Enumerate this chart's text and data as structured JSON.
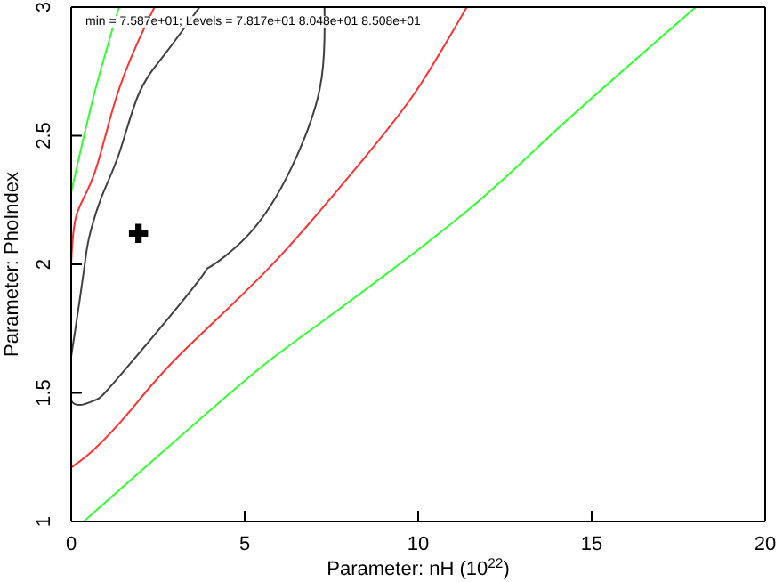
{
  "chart_data": {
    "type": "line",
    "xlabel": "Parameter: nH (10$^{22}$)",
    "ylabel": "Parameter: PhoIndex",
    "annotations": [
      "min = 7.587e+01; Levels =  7.817e+01 8.048e+01 8.508e+01"
    ],
    "xlim": [
      0,
      20
    ],
    "ylim": [
      1,
      3
    ],
    "xticks": [
      0,
      5,
      10,
      15,
      20
    ],
    "yticks": [
      1,
      1.5,
      2,
      2.5,
      3
    ],
    "grid": false,
    "marker": "none",
    "series": [
      {
        "color": "#404040",
        "x": [
          3.7,
          2.66,
          1.94,
          1.38,
          0.87,
          0.51,
          0.36,
          0.1,
          0,
          0,
          0.66,
          1.36,
          3.58,
          4.0,
          5.27,
          6.5,
          7.16,
          7.3,
          7.3
        ],
        "values": [
          3,
          2.81,
          2.66,
          2.43,
          2.26,
          2.1,
          1.97,
          1.73,
          1.64,
          1.47,
          1.47,
          1.56,
          1.92,
          1.99,
          2.14,
          2.42,
          2.68,
          2.88,
          3
        ]
      },
      {
        "color": "#ff3030",
        "x": [
          2.4,
          1.94,
          1.28,
          0.66,
          0.15,
          0
        ],
        "values": [
          3,
          2.87,
          2.64,
          2.35,
          2.19,
          2.0
        ]
      },
      {
        "color": "#ff3030",
        "x": [
          0,
          0.66,
          1.7,
          3.07,
          5.73,
          8.18,
          9.87,
          11.4
        ],
        "values": [
          1.21,
          1.28,
          1.43,
          1.64,
          1.99,
          2.37,
          2.66,
          3
        ]
      },
      {
        "color": "#30ff30",
        "x": [
          1.38,
          0.66,
          0
        ],
        "values": [
          3,
          2.66,
          2.28
        ]
      },
      {
        "color": "#30ff30",
        "x": [
          0.36,
          4.76,
          7.16,
          11.25,
          13.96,
          18.0
        ],
        "values": [
          1,
          1.52,
          1.77,
          2.19,
          2.52,
          3
        ]
      },
      {
        "type": "scatter",
        "marker": "cross",
        "color": "#000000",
        "x": [
          1.94
        ],
        "values": [
          2.12
        ]
      }
    ]
  }
}
